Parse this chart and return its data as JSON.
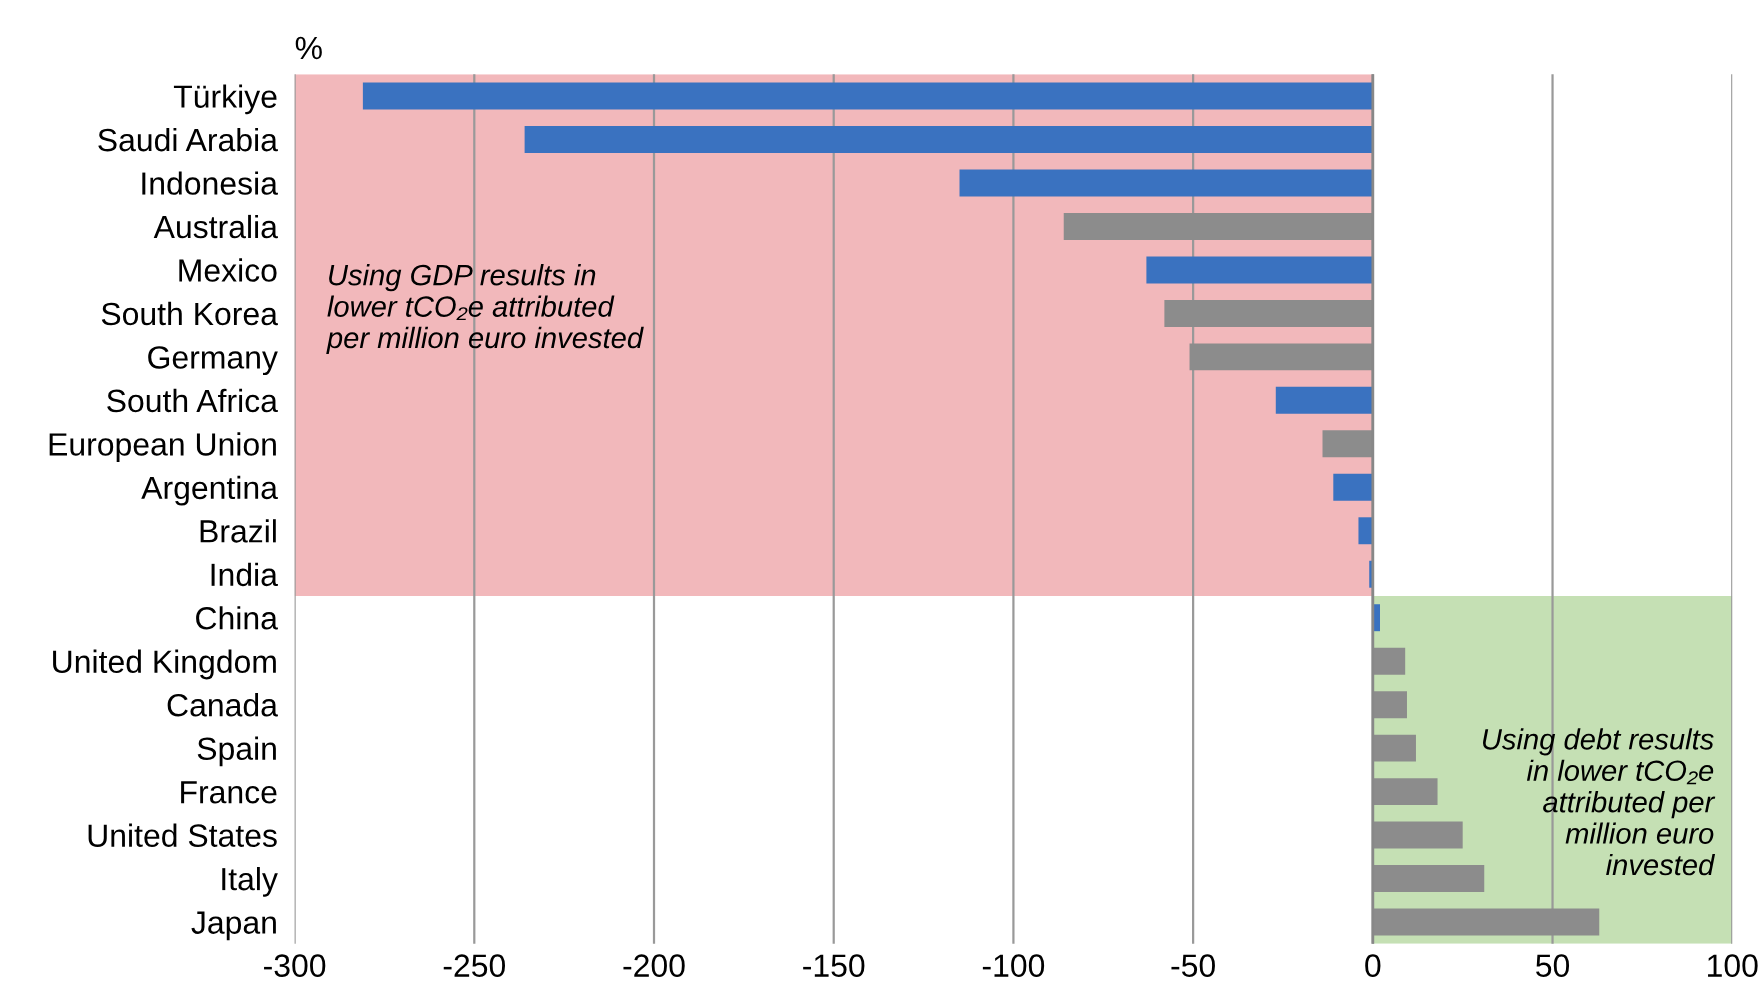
{
  "chart_data": {
    "type": "bar",
    "orientation": "horizontal",
    "xlabel": "%",
    "categories": [
      "Türkiye",
      "Saudi Arabia",
      "Indonesia",
      "Australia",
      "Mexico",
      "South Korea",
      "Germany",
      "South Africa",
      "European Union",
      "Argentina",
      "Brazil",
      "India",
      "China",
      "United Kingdom",
      "Canada",
      "Spain",
      "France",
      "United States",
      "Italy",
      "Japan"
    ],
    "values": [
      -281,
      -236,
      -115,
      -86,
      -63,
      -58,
      -51,
      -27,
      -14,
      -11,
      -4,
      -1,
      2,
      9,
      9.5,
      12,
      18,
      25,
      31,
      63
    ],
    "colors": [
      "#3a72c0",
      "#3a72c0",
      "#3a72c0",
      "#8c8c8c",
      "#3a72c0",
      "#8c8c8c",
      "#8c8c8c",
      "#3a72c0",
      "#8c8c8c",
      "#3a72c0",
      "#3a72c0",
      "#3a72c0",
      "#3a72c0",
      "#8c8c8c",
      "#8c8c8c",
      "#8c8c8c",
      "#8c8c8c",
      "#8c8c8c",
      "#8c8c8c",
      "#8c8c8c"
    ],
    "xlim": [
      -300,
      100
    ],
    "xticks": [
      -300,
      -250,
      -200,
      -150,
      -100,
      -50,
      0,
      50,
      100
    ],
    "grid": "x",
    "bands": [
      {
        "axis": "x",
        "from": -300,
        "to": 0,
        "color": "#f2b8bb",
        "label": "Using GDP results in\nlower tCO₂e attributed\nper million euro invested"
      },
      {
        "axis": "x",
        "from": 0,
        "to": 100,
        "color": "#c5e0b4",
        "label": "Using debt results\nin lower tCO₂e\nattributed per\nmillion euro\ninvested"
      }
    ]
  }
}
